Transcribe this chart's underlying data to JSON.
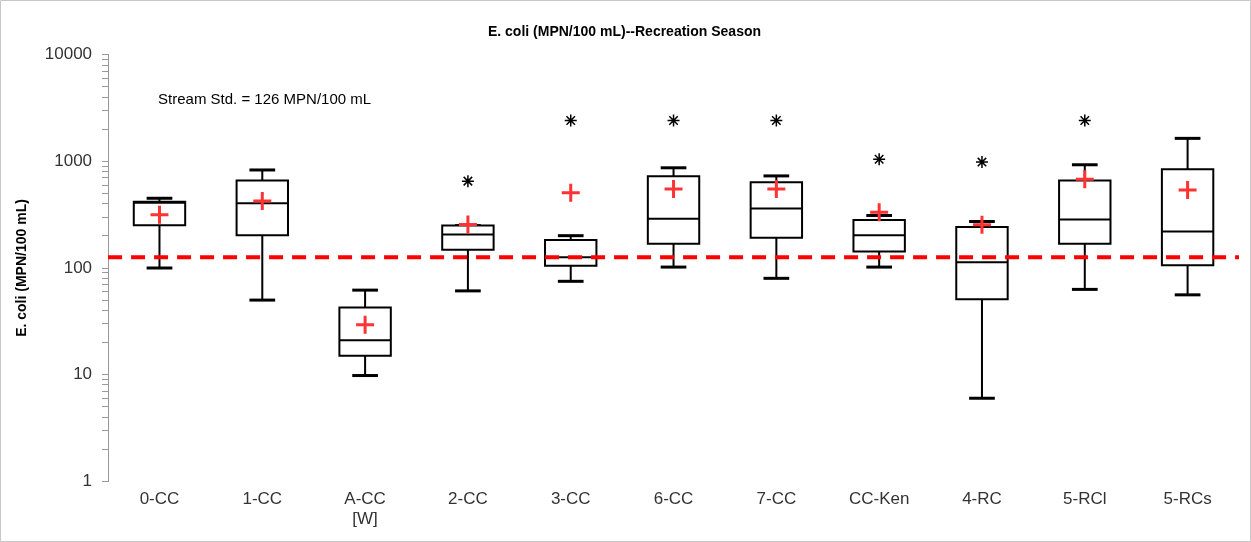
{
  "chart_data": {
    "type": "box",
    "title": "E. coli (MPN/100 mL)--Recreation Season",
    "ylabel": "E. coli (MPN/100 mL)",
    "categories": [
      "0-CC",
      "1-CC",
      "A-CC\n[W]",
      "2-CC",
      "3-CC",
      "6-CC",
      "7-CC",
      "CC-Ken",
      "4-RC",
      "5-RCl",
      "5-RCs"
    ],
    "log": "y",
    "ylim": [
      1,
      10000
    ],
    "yticks": [
      1,
      {
        "value": 2,
        "label": null
      },
      {
        "value": 3,
        "label": null
      },
      {
        "value": 4,
        "label": null
      },
      {
        "value": 5,
        "label": null
      },
      {
        "value": 6,
        "label": null
      },
      {
        "value": 7,
        "label": null
      },
      {
        "value": 8,
        "label": null
      },
      {
        "value": 9,
        "label": null
      },
      10,
      {
        "value": 20,
        "label": null
      },
      {
        "value": 30,
        "label": null
      },
      {
        "value": 40,
        "label": null
      },
      {
        "value": 50,
        "label": null
      },
      {
        "value": 60,
        "label": null
      },
      {
        "value": 70,
        "label": null
      },
      {
        "value": 80,
        "label": null
      },
      {
        "value": 90,
        "label": null
      },
      100,
      {
        "value": 200,
        "label": null
      },
      {
        "value": 300,
        "label": null
      },
      {
        "value": 400,
        "label": null
      },
      {
        "value": 500,
        "label": null
      },
      {
        "value": 600,
        "label": null
      },
      {
        "value": 700,
        "label": null
      },
      {
        "value": 800,
        "label": null
      },
      {
        "value": 900,
        "label": null
      },
      1000,
      {
        "value": 2000,
        "label": null
      },
      {
        "value": 3000,
        "label": null
      },
      {
        "value": 4000,
        "label": null
      },
      {
        "value": 5000,
        "label": null
      },
      {
        "value": 6000,
        "label": null
      },
      {
        "value": 7000,
        "label": null
      },
      {
        "value": 8000,
        "label": null
      },
      {
        "value": 9000,
        "label": null
      },
      10000
    ],
    "grid": false,
    "legend": false,
    "series": [
      {
        "color": "#000000",
        "boxes": [
          {
            "low": 100,
            "q1": 252,
            "median": 410,
            "q3": 419,
            "high": 451,
            "mean": 316
          },
          {
            "low": 50,
            "q1": 203,
            "median": 405,
            "q3": 663,
            "high": 831,
            "mean": 426
          },
          {
            "low": 9.8,
            "q1": 15,
            "median": 21,
            "q3": 42.5,
            "high": 62,
            "mean": 29.4
          },
          {
            "low": 61,
            "q1": 148,
            "median": 206,
            "q3": 250,
            "high": 250,
            "mean": 256,
            "outliers": [
              653
            ]
          },
          {
            "low": 75,
            "q1": 105,
            "median": 126,
            "q3": 183,
            "high": 201,
            "mean": 508,
            "outliers": [
              2420
            ]
          },
          {
            "low": 102,
            "q1": 169,
            "median": 289,
            "q3": 724,
            "high": 871,
            "mean": 551,
            "outliers": [
              2420
            ]
          },
          {
            "low": 80,
            "q1": 192,
            "median": 362,
            "q3": 637,
            "high": 731,
            "mean": 551,
            "outliers": [
              2420
            ]
          },
          {
            "low": 102,
            "q1": 143,
            "median": 203,
            "q3": 282,
            "high": 311,
            "mean": 334,
            "outliers": [
              1049
            ]
          },
          {
            "low": 6,
            "q1": 51,
            "median": 113,
            "q3": 242,
            "high": 273,
            "mean": 254,
            "outliers": [
              985
            ]
          },
          {
            "low": 63,
            "q1": 169,
            "median": 285,
            "q3": 663,
            "high": 930,
            "mean": 679,
            "outliers": [
              2420
            ]
          },
          {
            "low": 56,
            "q1": 106,
            "median": 220,
            "q3": 845,
            "high": 1645,
            "mean": 538
          }
        ]
      }
    ],
    "ref_lines": [
      {
        "axis": "y",
        "value": 126,
        "color": "#ff0000",
        "line_style": "dashed"
      }
    ],
    "annotations": [
      "Stream Std. = 126 MPN/100 mL"
    ]
  }
}
